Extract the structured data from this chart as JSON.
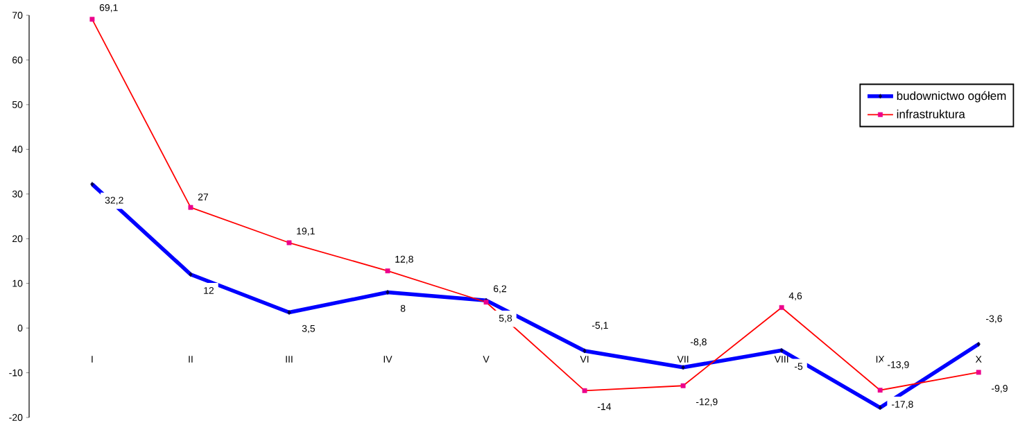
{
  "chart_data": {
    "type": "line",
    "categories": [
      "I",
      "II",
      "III",
      "IV",
      "V",
      "VI",
      "VII",
      "VIII",
      "IX",
      "X"
    ],
    "series": [
      {
        "name": "budownictwo ogółem",
        "color": "#0000ff",
        "marker": "diamond",
        "values": [
          32.2,
          12,
          3.5,
          8,
          6.2,
          -5.1,
          -8.8,
          -5,
          -17.8,
          -3.6
        ],
        "value_labels": [
          "32,2",
          "12",
          "3,5",
          "8",
          "6,2",
          "-5,1",
          "-8,8",
          "-5",
          "-17,8",
          "-3,6"
        ]
      },
      {
        "name": "infrastruktura",
        "color": "#ff0000",
        "marker": "square",
        "values": [
          69.1,
          27,
          19.1,
          12.8,
          5.8,
          -14,
          -12.9,
          4.6,
          -13.9,
          -9.9
        ],
        "value_labels": [
          "69,1",
          "27",
          "19,1",
          "12,8",
          "5,8",
          "-14",
          "-12,9",
          "4,6",
          "-13,9",
          "-9,9"
        ]
      }
    ],
    "ylim": [
      -20,
      70
    ],
    "yticks": [
      -20,
      -10,
      0,
      10,
      20,
      30,
      40,
      50,
      60,
      70
    ],
    "legend": "top right",
    "grid": false
  }
}
